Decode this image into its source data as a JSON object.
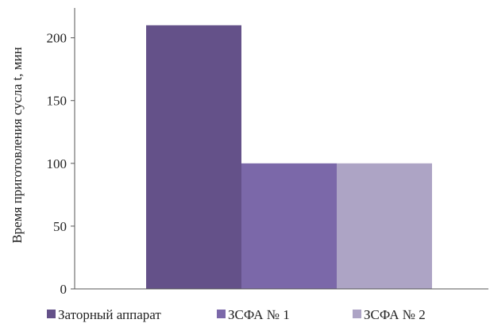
{
  "chart_data": {
    "type": "bar",
    "categories": [
      "Заторный аппарат",
      "ЗСФА № 1",
      "ЗСФА № 2"
    ],
    "series": [
      {
        "name": "Заторный аппарат",
        "values": [
          210,
          null,
          null
        ],
        "color": "#645189"
      },
      {
        "name": "ЗСФА № 1",
        "values": [
          null,
          100,
          null
        ],
        "color": "#7b68a9"
      },
      {
        "name": "ЗСФА № 2",
        "values": [
          null,
          null,
          100
        ],
        "color": "#ada4c5"
      }
    ],
    "ylabel": "Время приготовления сусла t, мин",
    "xlabel": "",
    "ylim": [
      0,
      220
    ],
    "yticks": [
      "0",
      "50",
      "100",
      "150",
      "200"
    ],
    "grid": false,
    "legend_position": "bottom"
  }
}
